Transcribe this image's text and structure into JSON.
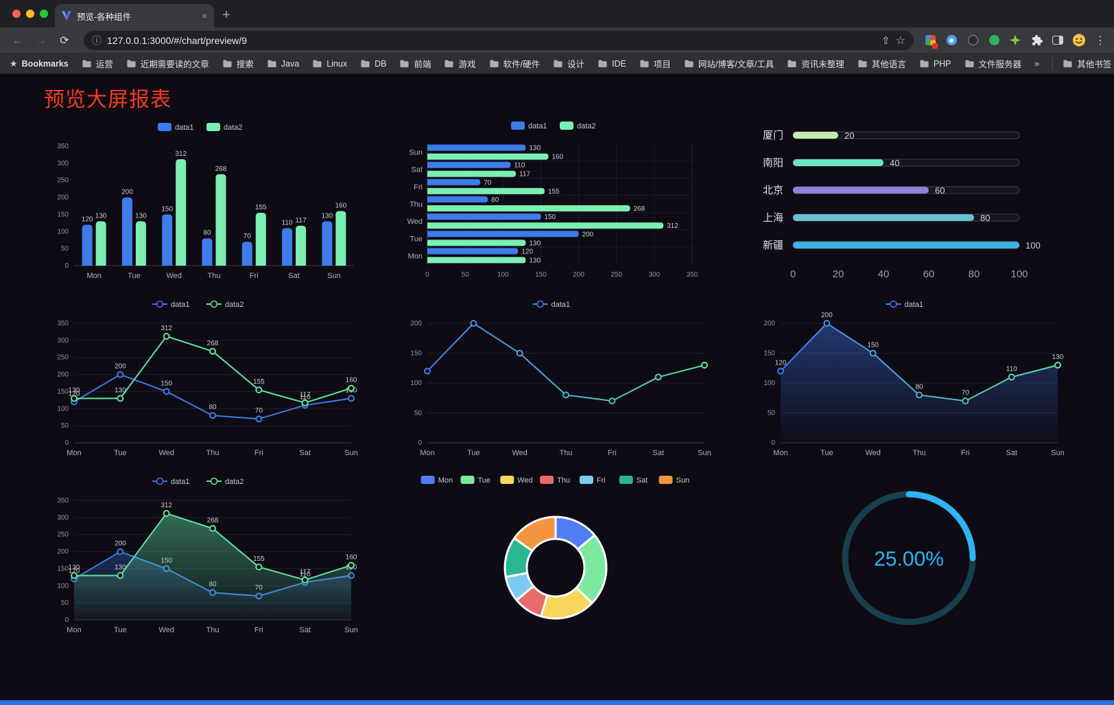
{
  "window": {
    "tab_title": "预览-各种组件",
    "url": "127.0.0.1:3000/#/chart/preview/9"
  },
  "icons": {
    "back": "←",
    "forward": "→",
    "reload": "⟳",
    "info": "ⓘ",
    "share": "⇧",
    "star": "☆",
    "plus": "+",
    "close": "×",
    "menu": "⋮",
    "overflow": "»",
    "bookmark_star": "★"
  },
  "bookmarks": {
    "label": "Bookmarks",
    "items": [
      "运营",
      "近期需要读的文章",
      "搜索",
      "Java",
      "Linux",
      "DB",
      "前端",
      "游戏",
      "软件/硬件",
      "设计",
      "IDE",
      "项目",
      "网站/博客/文章/工具",
      "资讯未整理",
      "其他语言",
      "PHP",
      "文件服务器"
    ],
    "other": "其他书签"
  },
  "page": {
    "title": "预览大屏报表"
  },
  "chart_data": [
    {
      "name": "grouped-bar",
      "type": "bar",
      "categories": [
        "Mon",
        "Tue",
        "Wed",
        "Thu",
        "Fri",
        "Sat",
        "Sun"
      ],
      "ylim": [
        0,
        350
      ],
      "ytick": 50,
      "series": [
        {
          "name": "data1",
          "color": "#3D7CEA",
          "values": [
            120,
            200,
            150,
            80,
            70,
            110,
            130
          ]
        },
        {
          "name": "data2",
          "color": "#7BEFB2",
          "values": [
            130,
            130,
            312,
            268,
            155,
            117,
            160
          ]
        }
      ]
    },
    {
      "name": "grouped-horizontal-bar",
      "type": "hbar",
      "categories": [
        "Mon",
        "Tue",
        "Wed",
        "Thu",
        "Fri",
        "Sat",
        "Sun"
      ],
      "xlim": [
        0,
        350
      ],
      "xtick": 50,
      "series": [
        {
          "name": "data1",
          "color": "#3D7CEA",
          "values": [
            120,
            200,
            150,
            80,
            70,
            110,
            130
          ]
        },
        {
          "name": "data2",
          "color": "#7BEFB2",
          "values": [
            130,
            130,
            312,
            268,
            155,
            117,
            160
          ]
        }
      ]
    },
    {
      "name": "city-progress",
      "type": "progress",
      "xticks": [
        0,
        20,
        40,
        60,
        80,
        100
      ],
      "rows": [
        {
          "label": "厦门",
          "value": 20,
          "color": "#C4EBAD"
        },
        {
          "label": "南阳",
          "value": 40,
          "color": "#6BE6C1"
        },
        {
          "label": "北京",
          "value": 60,
          "color": "#8D83D9"
        },
        {
          "label": "上海",
          "value": 80,
          "color": "#69C0CE"
        },
        {
          "label": "新疆",
          "value": 100,
          "color": "#3FB1E3"
        }
      ]
    },
    {
      "name": "two-series-line",
      "type": "line",
      "categories": [
        "Mon",
        "Tue",
        "Wed",
        "Thu",
        "Fri",
        "Sat",
        "Sun"
      ],
      "ylim": [
        0,
        350
      ],
      "ytick": 50,
      "point_labels": true,
      "series": [
        {
          "name": "data1",
          "color": "#3D7CEA",
          "values": [
            120,
            200,
            150,
            80,
            70,
            110,
            130
          ]
        },
        {
          "name": "data2",
          "color": "#5FE3A1",
          "values": [
            130,
            130,
            312,
            268,
            155,
            117,
            160
          ]
        }
      ]
    },
    {
      "name": "gradient-line",
      "type": "line",
      "categories": [
        "Mon",
        "Tue",
        "Wed",
        "Thu",
        "Fri",
        "Sat",
        "Sun"
      ],
      "ylim": [
        0,
        200
      ],
      "ytick": 50,
      "point_labels": false,
      "series": [
        {
          "name": "data1",
          "gradient": [
            "#3F7EF7",
            "#5FE3A6"
          ],
          "values": [
            120,
            200,
            150,
            80,
            70,
            110,
            130
          ]
        }
      ]
    },
    {
      "name": "area-line",
      "type": "line",
      "categories": [
        "Mon",
        "Tue",
        "Wed",
        "Thu",
        "Fri",
        "Sat",
        "Sun"
      ],
      "ylim": [
        0,
        200
      ],
      "ytick": 50,
      "point_labels": true,
      "series": [
        {
          "name": "data1",
          "gradient": [
            "#3F7EF7",
            "#5FE3A6"
          ],
          "area": [
            "rgba(63,126,247,0.40)",
            "rgba(63,126,247,0.02)"
          ],
          "values": [
            120,
            200,
            150,
            80,
            70,
            110,
            130
          ]
        }
      ]
    },
    {
      "name": "two-series-area-line",
      "type": "line",
      "categories": [
        "Mon",
        "Tue",
        "Wed",
        "Thu",
        "Fri",
        "Sat",
        "Sun"
      ],
      "ylim": [
        0,
        350
      ],
      "ytick": 50,
      "point_labels": true,
      "series": [
        {
          "name": "data1",
          "color": "#3D7CEA",
          "area": [
            "rgba(61,124,234,0.30)",
            "rgba(61,124,234,0.02)"
          ],
          "values": [
            120,
            200,
            150,
            80,
            70,
            110,
            130
          ]
        },
        {
          "name": "data2",
          "color": "#5FE3A1",
          "area": [
            "rgba(95,227,161,0.45)",
            "rgba(95,227,161,0.04)"
          ],
          "values": [
            130,
            130,
            312,
            268,
            155,
            117,
            160
          ]
        }
      ]
    },
    {
      "name": "weekday-donut",
      "type": "pie",
      "items": [
        {
          "name": "Mon",
          "value": 120,
          "color": "#4F7EF2"
        },
        {
          "name": "Tue",
          "value": 200,
          "color": "#7CE89E"
        },
        {
          "name": "Wed",
          "value": 150,
          "color": "#F6D75B"
        },
        {
          "name": "Thu",
          "value": 80,
          "color": "#E86A6A"
        },
        {
          "name": "Fri",
          "value": 70,
          "color": "#7EC9F2"
        },
        {
          "name": "Sat",
          "value": 110,
          "color": "#28B791"
        },
        {
          "name": "Sun",
          "value": 130,
          "color": "#F2953F"
        }
      ]
    },
    {
      "name": "progress-ring",
      "type": "gauge",
      "value": 25,
      "label": "25.00%",
      "color": "#2CB5F2",
      "track": "#173F4D"
    }
  ]
}
